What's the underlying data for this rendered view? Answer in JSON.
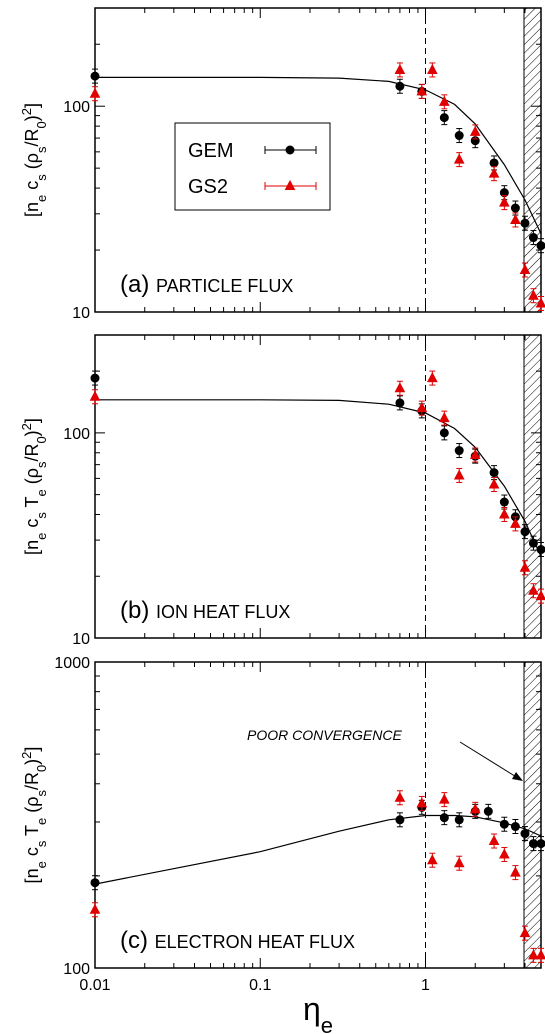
{
  "chart_data": [
    {
      "type": "scatter",
      "panel_letter": "(a)",
      "panel_title": "PARTICLE FLUX",
      "ylabel": "[n_e c_s (ρ_s/R_0)^2]",
      "xscale": "log",
      "yscale": "log",
      "xlim": [
        0.01,
        5
      ],
      "ylim": [
        10,
        300
      ],
      "yticklabels": [
        "10",
        "100"
      ],
      "series": [
        {
          "name": "GEM",
          "color": "#000000",
          "marker": "circle",
          "x": [
            0.01,
            0.7,
            0.95,
            1.3,
            1.6,
            2.0,
            2.6,
            3.0,
            3.5,
            4.0,
            4.5,
            5.0
          ],
          "y": [
            140,
            125,
            118,
            88,
            72,
            68,
            53,
            38,
            32,
            27,
            23,
            21
          ]
        },
        {
          "name": "GS2",
          "color": "#e00000",
          "marker": "triangle",
          "x": [
            0.01,
            0.7,
            0.95,
            1.1,
            1.3,
            1.6,
            2.0,
            2.6,
            3.0,
            3.5,
            4.0,
            4.5,
            5.0
          ],
          "y": [
            115,
            150,
            118,
            150,
            105,
            55,
            75,
            47,
            34,
            28,
            16,
            12,
            11
          ]
        },
        {
          "name": "fit",
          "color": "#000000",
          "marker": "none",
          "x": [
            0.01,
            0.1,
            0.3,
            0.6,
            1.0,
            1.5,
            2.0,
            3.0,
            4.0,
            5.0
          ],
          "y": [
            138,
            138,
            137,
            132,
            120,
            102,
            82,
            52,
            35,
            24
          ]
        }
      ]
    },
    {
      "type": "scatter",
      "panel_letter": "(b)",
      "panel_title": "ION HEAT FLUX",
      "ylabel": "[n_e c_s T_e (ρ_s/R_0)^2]",
      "xscale": "log",
      "yscale": "log",
      "xlim": [
        0.01,
        5
      ],
      "ylim": [
        10,
        300
      ],
      "yticklabels": [
        "10",
        "100"
      ],
      "series": [
        {
          "name": "GEM",
          "color": "#000000",
          "marker": "circle",
          "x": [
            0.01,
            0.7,
            0.95,
            1.3,
            1.6,
            2.0,
            2.6,
            3.0,
            3.5,
            4.0,
            4.5,
            5.0
          ],
          "y": [
            185,
            140,
            128,
            100,
            82,
            77,
            64,
            46,
            39,
            33,
            29,
            27
          ]
        },
        {
          "name": "GS2",
          "color": "#e00000",
          "marker": "triangle",
          "x": [
            0.01,
            0.7,
            0.95,
            1.1,
            1.3,
            1.6,
            2.0,
            2.6,
            3.0,
            3.5,
            4.0,
            4.5,
            5.0
          ],
          "y": [
            150,
            165,
            132,
            185,
            118,
            62,
            78,
            56,
            40,
            36,
            22,
            17,
            16
          ]
        },
        {
          "name": "fit",
          "color": "#000000",
          "marker": "none",
          "x": [
            0.01,
            0.1,
            0.3,
            0.6,
            1.0,
            1.5,
            2.0,
            3.0,
            4.0,
            5.0
          ],
          "y": [
            145,
            145,
            144,
            138,
            125,
            105,
            85,
            55,
            37,
            25
          ]
        }
      ]
    },
    {
      "type": "scatter",
      "panel_letter": "(c)",
      "panel_title": "ELECTRON HEAT FLUX",
      "ylabel": "[n_e c_s T_e (ρ_s/R_0)^2]",
      "xlabel": "η_e",
      "xscale": "log",
      "yscale": "log",
      "xlim": [
        0.01,
        5
      ],
      "ylim": [
        100,
        1000
      ],
      "yticklabels": [
        "100",
        "1000"
      ],
      "xticklabels": [
        "0.01",
        "0.1",
        "1"
      ],
      "annotation": "POOR CONVERGENCE",
      "series": [
        {
          "name": "GEM",
          "color": "#000000",
          "marker": "circle",
          "x": [
            0.01,
            0.7,
            0.95,
            1.3,
            1.6,
            2.0,
            2.4,
            3.0,
            3.5,
            4.0,
            4.5,
            5.0
          ],
          "y": [
            190,
            305,
            335,
            310,
            305,
            325,
            325,
            295,
            290,
            275,
            255,
            255
          ]
        },
        {
          "name": "GS2",
          "color": "#e00000",
          "marker": "triangle",
          "x": [
            0.01,
            0.7,
            0.95,
            1.1,
            1.3,
            1.6,
            2.0,
            2.6,
            3.0,
            3.5,
            4.0,
            4.5,
            5.0
          ],
          "y": [
            155,
            360,
            345,
            225,
            355,
            220,
            330,
            260,
            235,
            205,
            130,
            110,
            110
          ]
        },
        {
          "name": "fit",
          "color": "#000000",
          "marker": "none",
          "x": [
            0.01,
            0.1,
            0.3,
            0.6,
            1.0,
            1.5,
            2.0,
            3.0,
            4.0,
            5.0
          ],
          "y": [
            188,
            240,
            280,
            305,
            315,
            315,
            312,
            298,
            285,
            270
          ]
        }
      ]
    }
  ],
  "legend": {
    "items": [
      {
        "label": "GEM",
        "color": "#000000",
        "marker": "circle"
      },
      {
        "label": "GS2",
        "color": "#e00000",
        "marker": "triangle"
      }
    ]
  }
}
